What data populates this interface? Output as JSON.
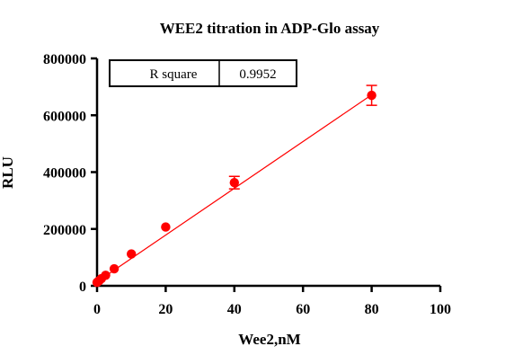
{
  "chart_data": {
    "type": "scatter",
    "title": "WEE2 titration in ADP-Glo assay",
    "xlabel": "Wee2,nM",
    "ylabel": "RLU",
    "xlim": [
      0,
      100
    ],
    "ylim": [
      0,
      800000
    ],
    "x_ticks": [
      0,
      20,
      40,
      60,
      80,
      100
    ],
    "y_ticks": [
      0,
      200000,
      400000,
      600000,
      800000
    ],
    "x_tick_labels": [
      "0",
      "20",
      "40",
      "60",
      "80",
      "100"
    ],
    "y_tick_labels": [
      "0",
      "200000",
      "400000",
      "600000",
      "800000"
    ],
    "points": [
      {
        "x": 0,
        "y": 12000,
        "err": 0
      },
      {
        "x": 0.3125,
        "y": 15000,
        "err": 0
      },
      {
        "x": 0.625,
        "y": 18000,
        "err": 0
      },
      {
        "x": 1.25,
        "y": 25000,
        "err": 0
      },
      {
        "x": 2.5,
        "y": 37000,
        "err": 0
      },
      {
        "x": 5,
        "y": 60000,
        "err": 0
      },
      {
        "x": 10,
        "y": 112000,
        "err": 0
      },
      {
        "x": 20,
        "y": 207000,
        "err": 0
      },
      {
        "x": 40,
        "y": 363000,
        "err": 22000
      },
      {
        "x": 80,
        "y": 670000,
        "err": 35000
      }
    ],
    "fit_line": {
      "type": "linear",
      "x": [
        0,
        80
      ],
      "y": [
        14000,
        672000
      ]
    },
    "r_square_table": {
      "label": "R square",
      "value": "0.9952"
    },
    "grid": false,
    "colors": {
      "points": "#ff0000",
      "fit_line": "#ff0000",
      "axes": "#000000"
    }
  }
}
